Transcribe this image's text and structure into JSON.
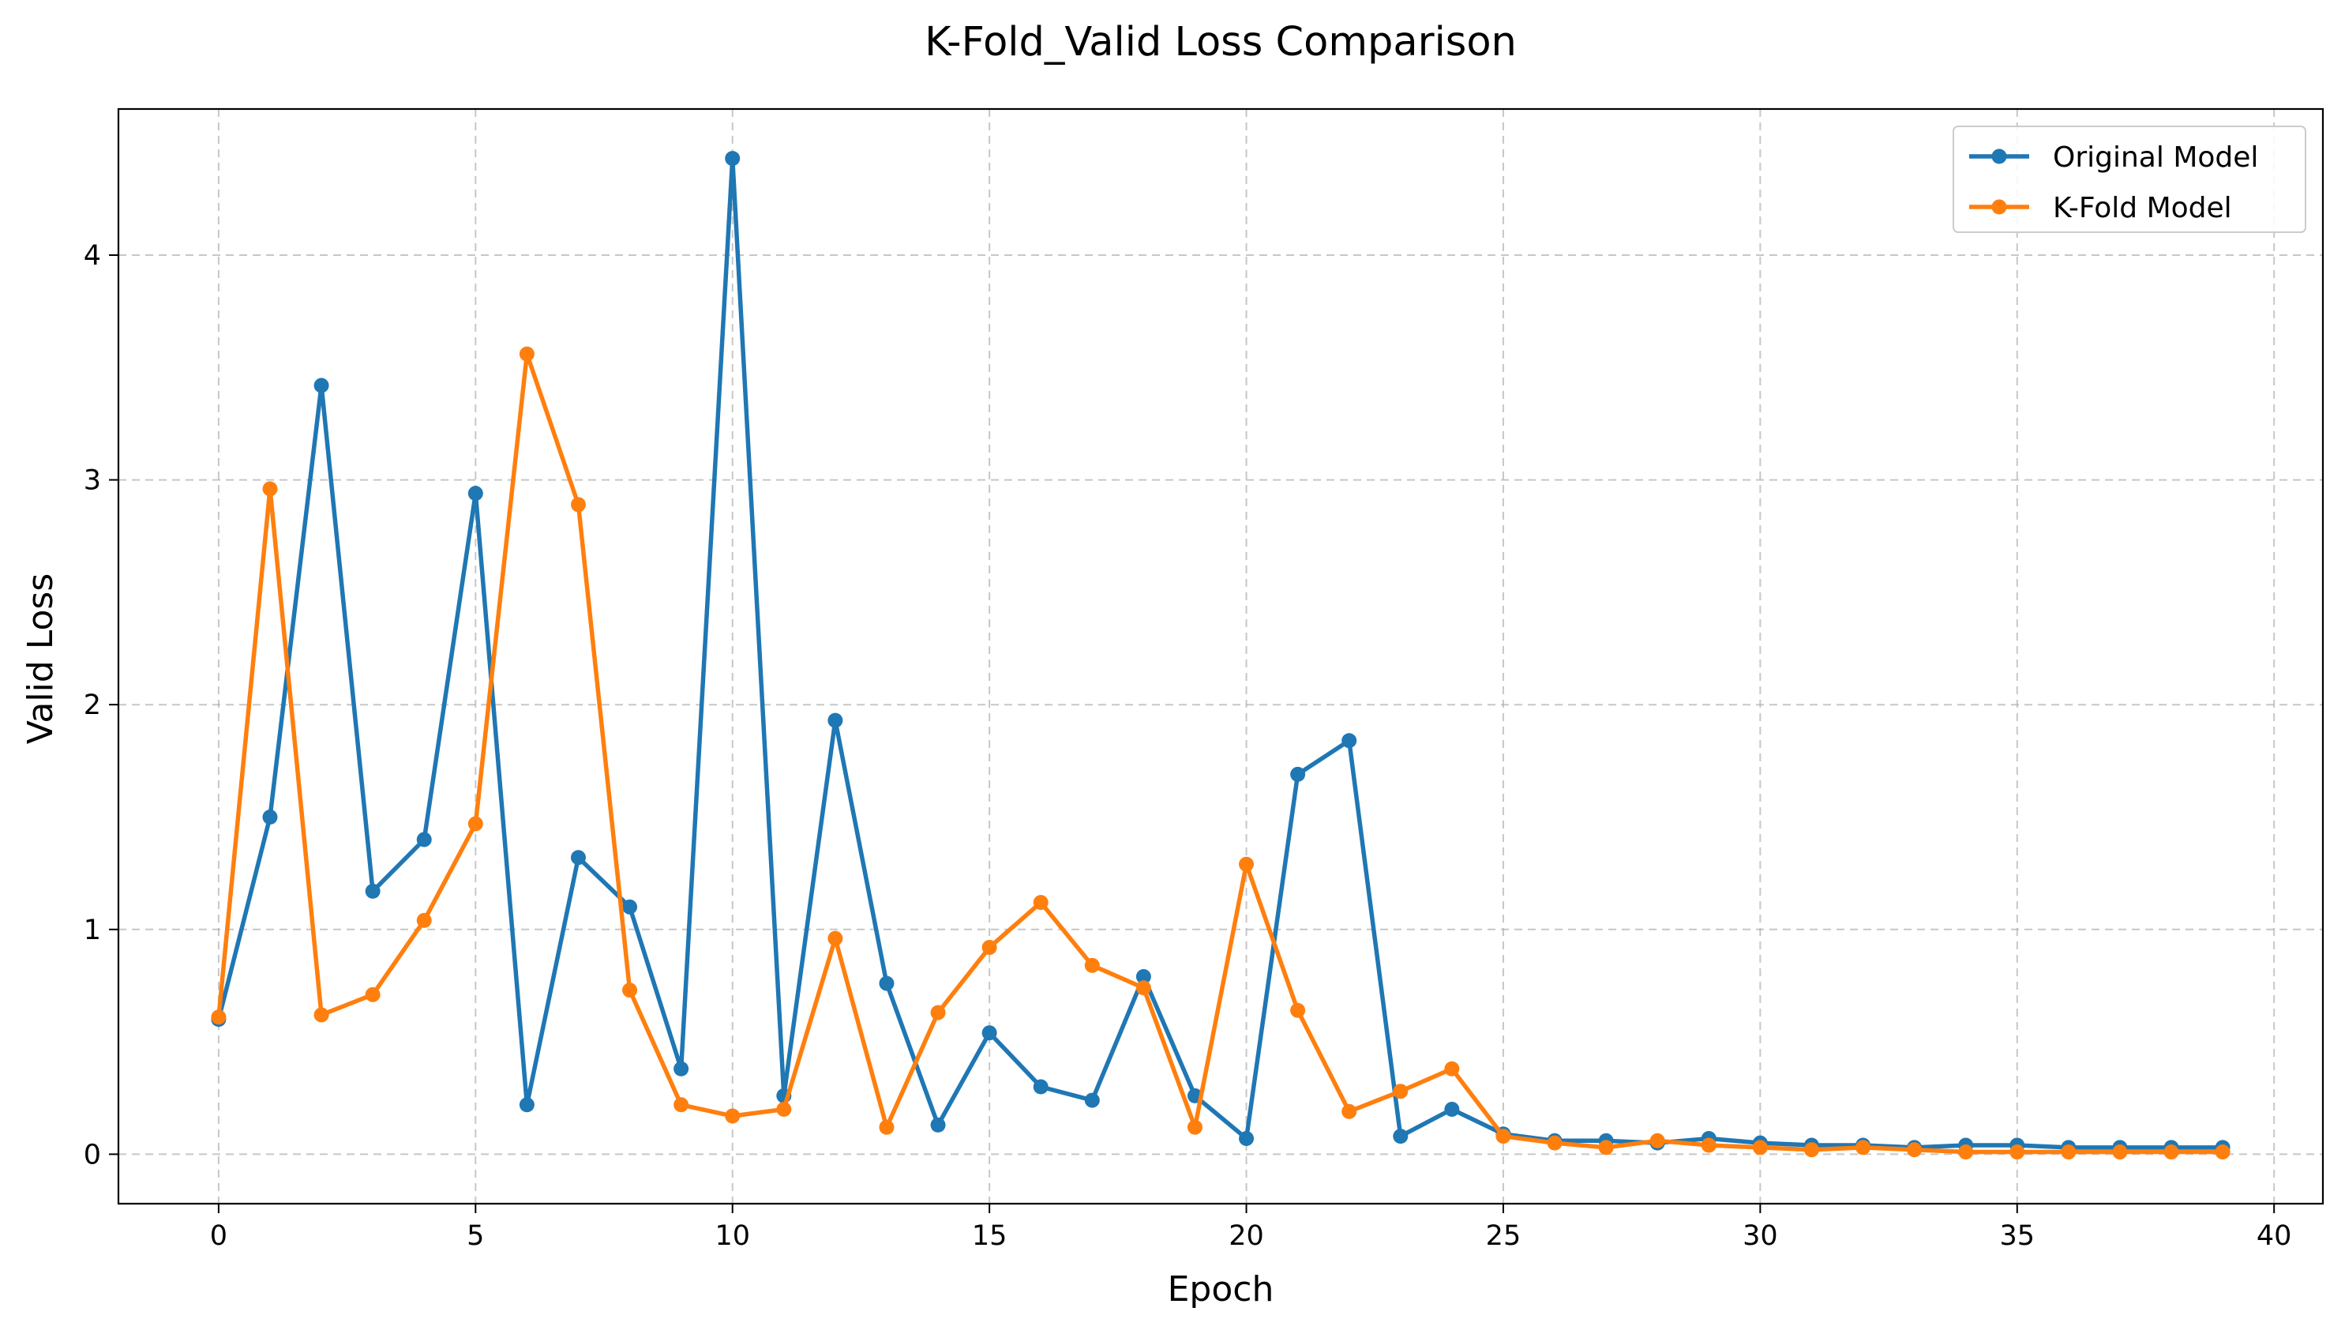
{
  "chart_data": {
    "type": "line",
    "title": "K-Fold_Valid Loss Comparison",
    "xlabel": "Epoch",
    "ylabel": "Valid Loss",
    "xlim": [
      -1.95,
      40.95
    ],
    "ylim": [
      -0.22,
      4.65
    ],
    "xticks": [
      0,
      5,
      10,
      15,
      20,
      25,
      30,
      35,
      40
    ],
    "yticks": [
      0,
      1,
      2,
      3,
      4
    ],
    "grid": true,
    "legend_position": "top-right",
    "x": [
      0,
      1,
      2,
      3,
      4,
      5,
      6,
      7,
      8,
      9,
      10,
      11,
      12,
      13,
      14,
      15,
      16,
      17,
      18,
      19,
      20,
      21,
      22,
      23,
      24,
      25,
      26,
      27,
      28,
      29,
      30,
      31,
      32,
      33,
      34,
      35,
      36,
      37,
      38,
      39
    ],
    "series": [
      {
        "name": "Original Model",
        "color": "#1f77b4",
        "values": [
          0.6,
          1.5,
          3.42,
          1.17,
          1.4,
          2.94,
          0.22,
          1.32,
          1.1,
          0.38,
          4.43,
          0.26,
          1.93,
          0.76,
          0.13,
          0.54,
          0.3,
          0.24,
          0.79,
          0.26,
          0.07,
          1.69,
          1.84,
          0.08,
          0.2,
          0.09,
          0.06,
          0.06,
          0.05,
          0.07,
          0.05,
          0.04,
          0.04,
          0.03,
          0.04,
          0.04,
          0.03,
          0.03,
          0.03,
          0.03
        ]
      },
      {
        "name": "K-Fold Model",
        "color": "#ff7f0e",
        "values": [
          0.61,
          2.96,
          0.62,
          0.71,
          1.04,
          1.47,
          3.56,
          2.89,
          0.73,
          0.22,
          0.17,
          0.2,
          0.96,
          0.12,
          0.63,
          0.92,
          1.12,
          0.84,
          0.74,
          0.12,
          1.29,
          0.64,
          0.19,
          0.28,
          0.38,
          0.08,
          0.05,
          0.03,
          0.06,
          0.04,
          0.03,
          0.02,
          0.03,
          0.02,
          0.01,
          0.01,
          0.01,
          0.01,
          0.01,
          0.01
        ]
      }
    ]
  }
}
